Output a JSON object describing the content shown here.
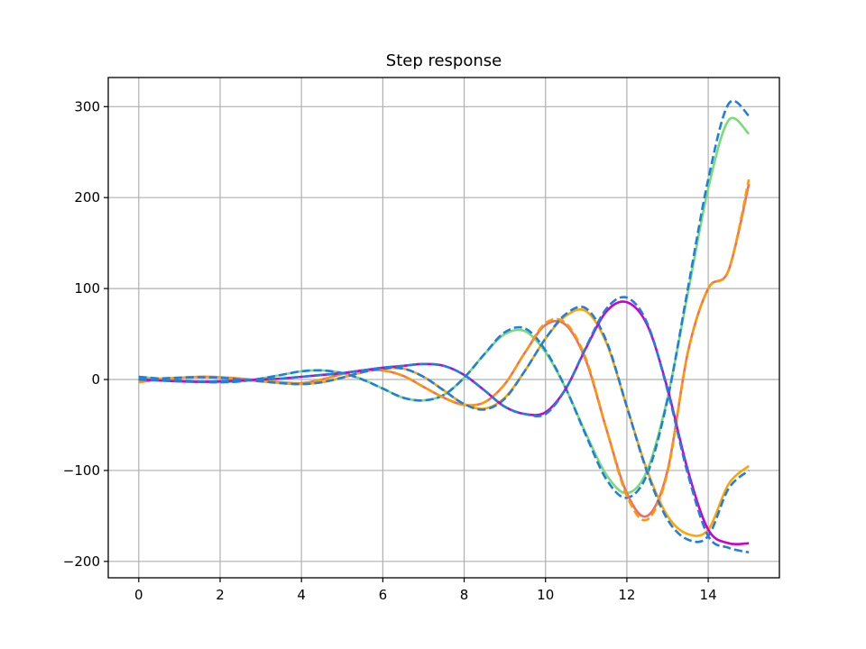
{
  "chart_data": {
    "type": "line",
    "title": "Step response",
    "xlabel": "",
    "ylabel": "",
    "xlim": [
      -0.75,
      15.75
    ],
    "ylim": [
      -218,
      332
    ],
    "xticks": [
      0,
      2,
      4,
      6,
      8,
      10,
      12,
      14
    ],
    "xtick_labels": [
      "0",
      "2",
      "4",
      "6",
      "8",
      "10",
      "12",
      "14"
    ],
    "yticks": [
      -200,
      -100,
      0,
      100,
      200,
      300
    ],
    "ytick_labels": [
      "−200",
      "−100",
      "0",
      "100",
      "200",
      "300"
    ],
    "grid": true,
    "legend": "none",
    "x": [
      0,
      0.5,
      1,
      1.5,
      2,
      2.5,
      3,
      3.5,
      4,
      4.5,
      5,
      5.5,
      6,
      6.5,
      7,
      7.5,
      8,
      8.5,
      9,
      9.5,
      10,
      10.5,
      11,
      11.5,
      12,
      12.5,
      13,
      13.5,
      14,
      14.5,
      15
    ],
    "series": [
      {
        "color": "#77dd77",
        "dash": false,
        "values": [
          3,
          1,
          -1,
          -2.5,
          -3,
          -2,
          1,
          5,
          9,
          10,
          7,
          0,
          -10,
          -20,
          -23,
          -17,
          2,
          28,
          50,
          53,
          30,
          -10,
          -60,
          -105,
          -125,
          -100,
          -20,
          95,
          210,
          285,
          270
        ]
      },
      {
        "color": "#1f7fe0",
        "dash": true,
        "values": [
          3,
          1,
          -1,
          -2.5,
          -3,
          -2,
          1,
          5,
          9,
          10,
          7,
          0,
          -10,
          -20,
          -23,
          -17,
          2,
          28,
          52,
          56,
          32,
          -10,
          -62,
          -110,
          -130,
          -104,
          -22,
          100,
          220,
          303,
          290
        ]
      },
      {
        "color": "#f06a6a",
        "dash": false,
        "values": [
          -3,
          0,
          2,
          3,
          2.5,
          1,
          -1,
          -3,
          -4,
          0,
          6,
          10,
          10,
          4,
          -8,
          -20,
          -28,
          -25,
          -5,
          30,
          60,
          60,
          20,
          -55,
          -125,
          -150,
          -100,
          30,
          100,
          120,
          215
        ]
      },
      {
        "color": "#ff9900",
        "dash": true,
        "values": [
          -3,
          0,
          2,
          3,
          2.5,
          1,
          -1,
          -3,
          -4,
          0,
          6,
          10,
          10,
          4,
          -8,
          -20,
          -28,
          -25,
          -5,
          30,
          62,
          62,
          22,
          -55,
          -128,
          -154,
          -102,
          30,
          100,
          120,
          220
        ]
      },
      {
        "color": "#ffa500",
        "dash": false,
        "values": [
          0,
          1,
          2,
          2.5,
          2,
          0,
          -2,
          -4,
          -5,
          -3,
          2,
          8,
          12,
          12,
          3,
          -12,
          -27,
          -32,
          -20,
          10,
          45,
          70,
          75,
          40,
          -30,
          -100,
          -150,
          -170,
          -165,
          -115,
          -95
        ]
      },
      {
        "color": "#1f7fe0",
        "dash": true,
        "values": [
          0,
          1,
          2,
          2.5,
          2,
          0,
          -2,
          -4,
          -5,
          -3,
          2,
          8,
          12,
          12,
          3,
          -12,
          -27,
          -33,
          -21,
          10,
          45,
          72,
          78,
          42,
          -30,
          -102,
          -154,
          -176,
          -172,
          -120,
          -100
        ]
      },
      {
        "color": "#cc00cc",
        "dash": false,
        "values": [
          0,
          -1,
          -2,
          -2.5,
          -2,
          -1,
          0,
          1,
          3,
          5,
          7,
          10,
          13,
          15,
          17,
          15,
          5,
          -12,
          -30,
          -38,
          -36,
          -10,
          35,
          75,
          85,
          60,
          -10,
          -100,
          -165,
          -180,
          -180
        ]
      },
      {
        "color": "#1f7fe0",
        "dash": true,
        "values": [
          0,
          -1,
          -2,
          -2.5,
          -2,
          -1,
          0,
          1,
          3,
          5,
          7,
          10,
          13,
          15,
          17,
          15,
          5,
          -12,
          -30,
          -38,
          -38,
          -10,
          36,
          78,
          90,
          62,
          -12,
          -104,
          -172,
          -185,
          -190
        ]
      }
    ]
  }
}
